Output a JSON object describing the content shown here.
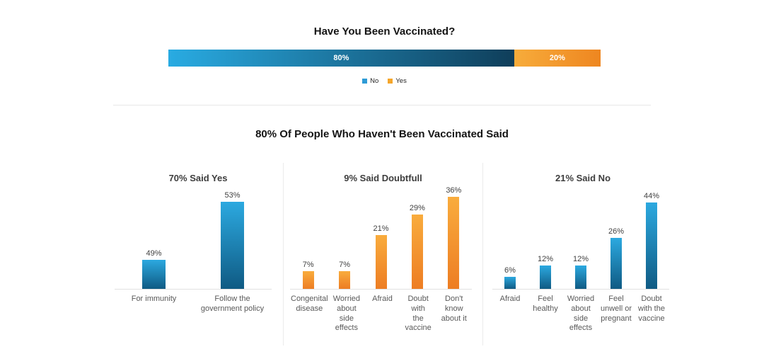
{
  "theme": {
    "background": "#ffffff",
    "title_color": "#141414",
    "panel_title_color": "#3d3d3d",
    "value_label_color": "#414141",
    "category_label_color": "#595959",
    "axis_line_color": "#e1e1e1",
    "divider_color": "#e8e8e8",
    "stack_blue_gradient": [
      "#29ABE2",
      "#0F3E5A"
    ],
    "stack_orange_gradient": [
      "#F7AC3B",
      "#EE8620"
    ],
    "blue_gradient": [
      "#2CA9E0",
      "#0F5A83"
    ],
    "orange_gradient": [
      "#F9AC3D",
      "#ED7D23"
    ]
  },
  "section_title": "80% Of People Who Haven't Been Vaccinated Said",
  "chart_data": [
    {
      "type": "bar",
      "subtype": "horizontal-stacked",
      "title": "Have You Been Vaccinated?",
      "segments": [
        {
          "name": "No",
          "value": 80,
          "color_key": "stack_blue_gradient"
        },
        {
          "name": "Yes",
          "value": 20,
          "color_key": "stack_orange_gradient"
        }
      ],
      "legend": [
        {
          "label": "No",
          "color": "#2E9BD6"
        },
        {
          "label": "Yes",
          "color": "#F5A62B"
        }
      ],
      "legend_position": "bottom",
      "value_format": "percent",
      "grid": false
    },
    {
      "type": "bar",
      "title": "70% Said Yes",
      "categories": [
        "For immunity",
        "Follow the\ngovernment policy"
      ],
      "values": [
        49,
        53
      ],
      "ylim": [
        47,
        55
      ],
      "bar_color_key": "blue_gradient",
      "value_format": "percent",
      "grid": false
    },
    {
      "type": "bar",
      "title": "9% Said Doubtfull",
      "categories": [
        "Congenital\ndisease",
        "Worried\nabout side\neffects",
        "Afraid",
        "Doubt with\nthe vaccine",
        "Don't\nknow\nabout it"
      ],
      "values": [
        7,
        7,
        21,
        29,
        36
      ],
      "ylim": [
        0,
        38
      ],
      "bar_color_key": "orange_gradient",
      "value_format": "percent",
      "grid": false
    },
    {
      "type": "bar",
      "title": "21% Said No",
      "categories": [
        "Afraid",
        "Feel\nhealthy",
        "Worried\nabout\nside\neffects",
        "Feel\nunwell or\npregnant",
        "Doubt\nwith the\nvaccine"
      ],
      "values": [
        6,
        12,
        12,
        26,
        44
      ],
      "ylim": [
        0,
        48
      ],
      "bar_color_key": "blue_gradient",
      "value_format": "percent",
      "grid": false
    }
  ]
}
